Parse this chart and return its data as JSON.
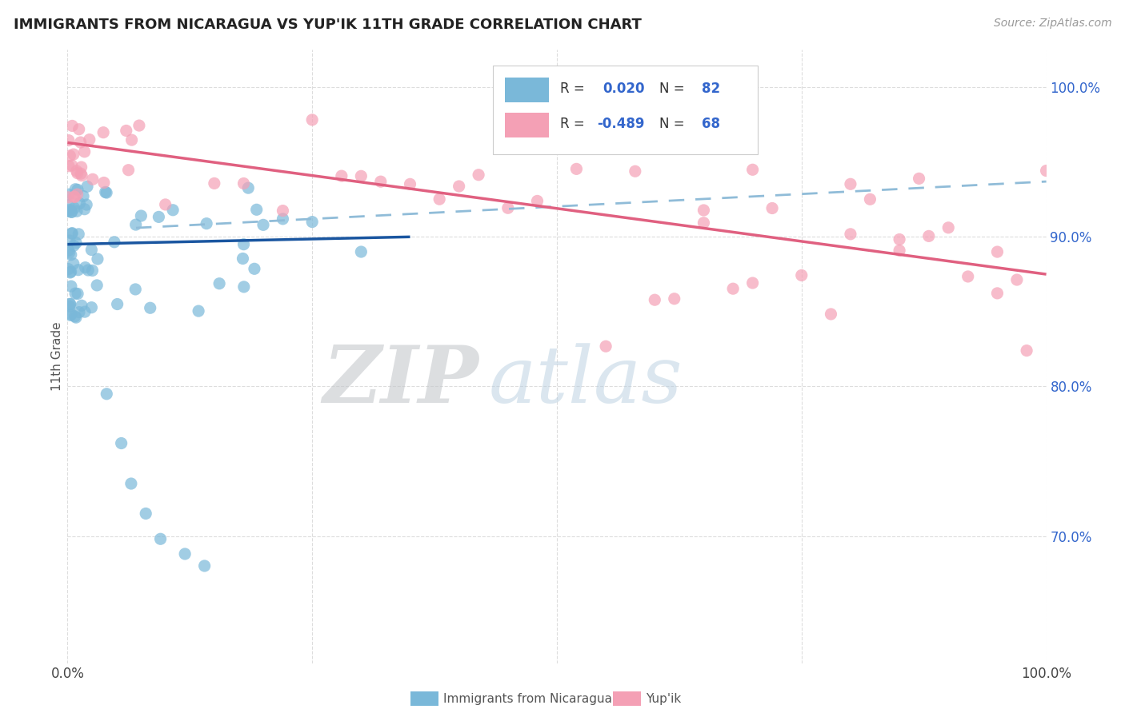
{
  "title": "IMMIGRANTS FROM NICARAGUA VS YUP'IK 11TH GRADE CORRELATION CHART",
  "source": "Source: ZipAtlas.com",
  "ylabel": "11th Grade",
  "legend_blue_r_val": "0.020",
  "legend_blue_n_val": "82",
  "legend_pink_r_val": "-0.489",
  "legend_pink_n_val": "68",
  "legend_label_blue": "Immigrants from Nicaragua",
  "legend_label_pink": "Yup'ik",
  "watermark_zip": "ZIP",
  "watermark_atlas": "atlas",
  "blue_color": "#7ab8d9",
  "pink_color": "#f4a0b5",
  "blue_line_color": "#1a56a0",
  "pink_line_color": "#e06080",
  "blue_ci_color": "#90bcd8",
  "r_n_color": "#3366cc",
  "title_color": "#222222",
  "xlim": [
    0.0,
    1.0
  ],
  "ylim": [
    0.615,
    1.025
  ],
  "yticks": [
    0.7,
    0.8,
    0.9,
    1.0
  ],
  "ytick_labels": [
    "70.0%",
    "80.0%",
    "90.0%",
    "100.0%"
  ],
  "xticks": [
    0.0,
    0.25,
    0.5,
    0.75,
    1.0
  ],
  "xtick_labels": [
    "0.0%",
    "",
    "",
    "",
    "100.0%"
  ],
  "blue_line": {
    "x0": 0.0,
    "x1": 0.35,
    "y0": 0.895,
    "y1": 0.9
  },
  "pink_line": {
    "x0": 0.0,
    "x1": 1.0,
    "y0": 0.963,
    "y1": 0.875
  },
  "blue_ci_line": {
    "x0": 0.07,
    "x1": 1.0,
    "y0": 0.906,
    "y1": 0.937
  },
  "background_color": "#ffffff",
  "grid_color": "#dddddd"
}
